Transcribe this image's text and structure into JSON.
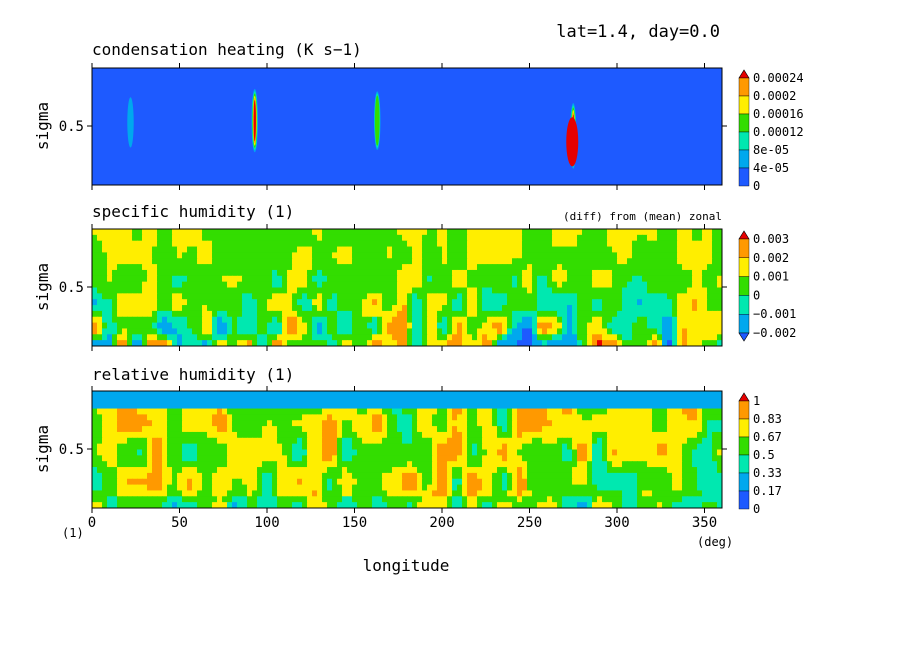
{
  "header": {
    "info": "lat=1.4, day=0.0"
  },
  "x_axis": {
    "label": "longitude",
    "unit": "(deg)",
    "ticks": [
      "0",
      "50",
      "100",
      "150",
      "200",
      "250",
      "300",
      "350"
    ],
    "range": [
      0,
      360
    ],
    "corner_label": "(1)"
  },
  "chart_data": [
    {
      "type": "heatmap",
      "title": "condensation heating (K s−1)",
      "ylabel": "sigma",
      "ytick": "0.5",
      "yrange": [
        1.0,
        0.0
      ],
      "note": "",
      "legend": [
        "0.00024",
        "0.0002",
        "0.00016",
        "0.00012",
        "8e-05",
        "4e-05",
        "0"
      ],
      "colors": [
        "#e60000",
        "#ff9900",
        "#ffee00",
        "#33dd00",
        "#00e8b0",
        "#00a8ee",
        "#1e5aff"
      ],
      "features": [
        {
          "lon": 22,
          "sig_top": 0.25,
          "sig_bot": 0.68,
          "peak": 5e-05
        },
        {
          "lon": 93,
          "sig_top": 0.18,
          "sig_bot": 0.72,
          "peak": 0.00026
        },
        {
          "lon": 163,
          "sig_top": 0.2,
          "sig_bot": 0.7,
          "peak": 0.00014
        },
        {
          "lon": 275,
          "sig_top": 0.3,
          "sig_bot": 0.86,
          "peak": 0.00026
        }
      ]
    },
    {
      "type": "heatmap",
      "title": "specific humidity (1)",
      "ylabel": "sigma",
      "ytick": "0.5",
      "yrange": [
        1.0,
        0.0
      ],
      "note": "(diff) from (mean) zonal",
      "legend": [
        "0.003",
        "0.002",
        "0.001",
        "0",
        "−0.001",
        "−0.002"
      ],
      "colors": [
        "#e60000",
        "#ff9900",
        "#ffee00",
        "#33dd00",
        "#00e8b0",
        "#00a8ee",
        "#1e5aff"
      ]
    },
    {
      "type": "heatmap",
      "title": "relative humidity (1)",
      "ylabel": "sigma",
      "ytick": "0.5",
      "yrange": [
        1.0,
        0.0
      ],
      "note": "",
      "legend": [
        "1",
        "0.83",
        "0.67",
        "0.5",
        "0.33",
        "0.17",
        "0"
      ],
      "colors": [
        "#e60000",
        "#ff9900",
        "#ffee00",
        "#33dd00",
        "#00e8b0",
        "#00a8ee",
        "#1e5aff"
      ]
    }
  ]
}
